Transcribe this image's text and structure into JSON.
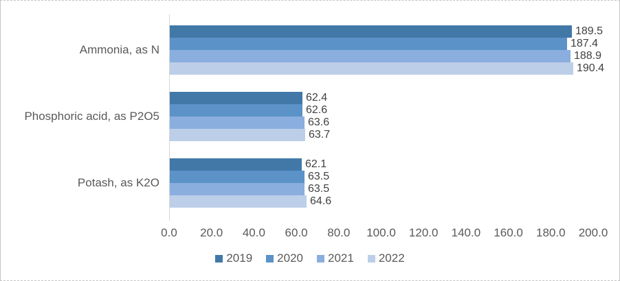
{
  "chart_data": {
    "type": "bar",
    "orientation": "horizontal",
    "title": "",
    "categories": [
      "Ammonia, as N",
      "Phosphoric acid, as P2O5",
      "Potash, as K2O"
    ],
    "series": [
      {
        "name": "2019",
        "color": "#4278a8",
        "values": [
          189.5,
          62.4,
          62.1
        ]
      },
      {
        "name": "2020",
        "color": "#5b92c8",
        "values": [
          187.4,
          62.6,
          63.5
        ]
      },
      {
        "name": "2021",
        "color": "#8aaede",
        "values": [
          188.9,
          63.6,
          63.5
        ]
      },
      {
        "name": "2022",
        "color": "#bdcfe8",
        "values": [
          190.4,
          63.7,
          64.6
        ]
      }
    ],
    "data_labels": [
      [
        "189.5",
        "187.4",
        "188.9",
        "190.4"
      ],
      [
        "62.4",
        "62.6",
        "63.6",
        "63.7"
      ],
      [
        "62.1",
        "63.5",
        "63.5",
        "64.6"
      ]
    ],
    "x_axis": {
      "min": 0,
      "max": 200,
      "tick_interval": 20,
      "tick_labels": [
        "0.0",
        "20.0",
        "40.0",
        "60.0",
        "80.0",
        "100.0",
        "120.0",
        "140.0",
        "160.0",
        "180.0",
        "200.0"
      ]
    },
    "legend": {
      "position": "bottom",
      "entries": [
        "2019",
        "2020",
        "2021",
        "2022"
      ]
    },
    "grid": false,
    "colors": {
      "category_text": "#595959",
      "data_label_text": "#3f3f3f",
      "axis_line": "#d6d6d6",
      "background": "#ffffff",
      "border": "#c6c6c6"
    }
  }
}
